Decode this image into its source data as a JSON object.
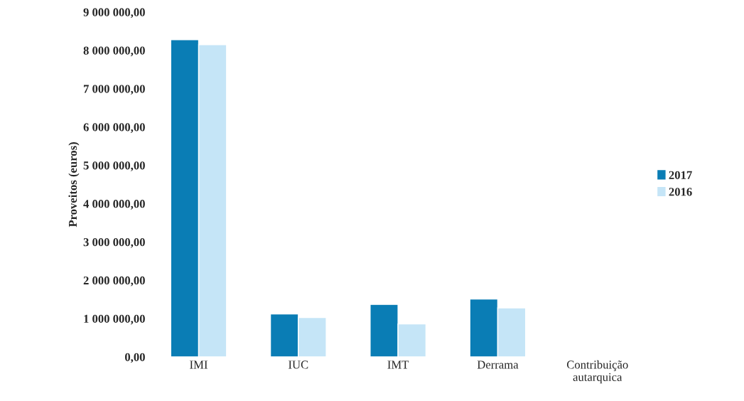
{
  "chart_data": {
    "type": "bar",
    "ylabel": "Proveitos (euros)",
    "categories": [
      "IMI",
      "IUC",
      "IMT",
      "Derrama",
      "Contribuição\nautarquica"
    ],
    "series": [
      {
        "name": "2017",
        "color": "#0a7db5",
        "values": [
          8280000,
          1120000,
          1370000,
          1510000,
          null
        ]
      },
      {
        "name": "2016",
        "color": "#c5e5f7",
        "values": [
          8150000,
          1030000,
          860000,
          1280000,
          null
        ]
      }
    ],
    "ylim": [
      0,
      9000000
    ],
    "yticks": [
      {
        "value": 0,
        "label": "0,00"
      },
      {
        "value": 1000000,
        "label": "1 000 000,00"
      },
      {
        "value": 2000000,
        "label": "2 000 000,00"
      },
      {
        "value": 3000000,
        "label": "3 000 000,00"
      },
      {
        "value": 4000000,
        "label": "4 000 000,00"
      },
      {
        "value": 5000000,
        "label": "5 000 000,00"
      },
      {
        "value": 6000000,
        "label": "6 000 000,00"
      },
      {
        "value": 7000000,
        "label": "7 000 000,00"
      },
      {
        "value": 8000000,
        "label": "8 000 000,00"
      },
      {
        "value": 9000000,
        "label": "9 000 000,00"
      }
    ],
    "grid": false,
    "legend": "right"
  }
}
